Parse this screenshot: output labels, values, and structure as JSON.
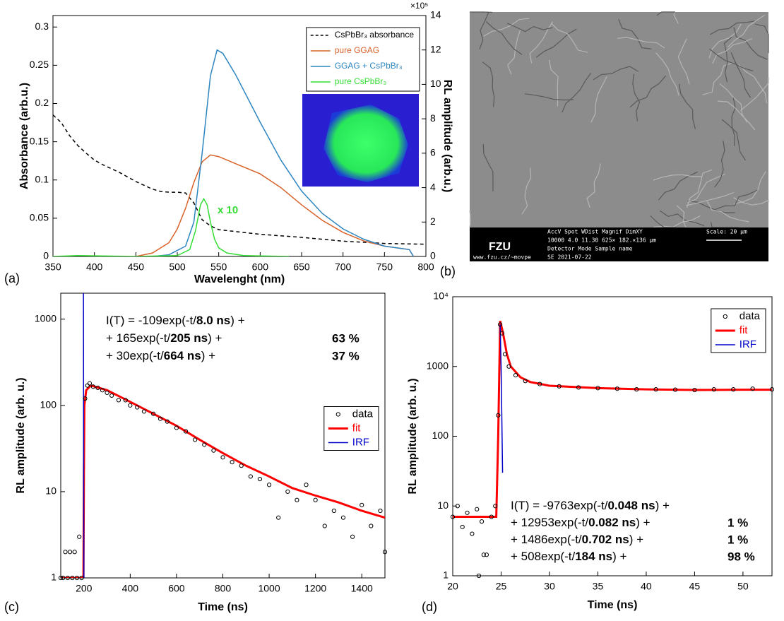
{
  "chart_data": [
    {
      "type": "line",
      "panel_label": "(a)",
      "xlabel": "Wavelenght (nm)",
      "ylabel": "Absorbance (arb.u.)",
      "y2label": "RL amplitude (arb.u.)",
      "y2_multiplier": "×10⁵",
      "annotation": "x 10",
      "xlim": [
        350,
        800
      ],
      "ylim": [
        0,
        0.315
      ],
      "y2lim": [
        0,
        14
      ],
      "xticks": [
        350,
        400,
        450,
        500,
        550,
        600,
        650,
        700,
        750,
        800
      ],
      "yticks": [
        0,
        0.05,
        0.1,
        0.15,
        0.2,
        0.25,
        0.3
      ],
      "y2ticks": [
        0,
        2,
        4,
        6,
        8,
        10,
        12,
        14
      ],
      "legend": "upper right",
      "series": [
        {
          "name": "CsPbBr₃ absorbance",
          "color": "#000000",
          "dash": true,
          "x": [
            350,
            360,
            370,
            380,
            390,
            400,
            410,
            420,
            430,
            440,
            450,
            460,
            470,
            480,
            490,
            500,
            510,
            520,
            530,
            540,
            550,
            575,
            600,
            650,
            700,
            750,
            800
          ],
          "values": [
            0.185,
            0.175,
            0.158,
            0.145,
            0.135,
            0.126,
            0.12,
            0.115,
            0.11,
            0.104,
            0.098,
            0.093,
            0.088,
            0.085,
            0.084,
            0.084,
            0.083,
            0.07,
            0.048,
            0.04,
            0.035,
            0.032,
            0.029,
            0.025,
            0.02,
            0.017,
            0.016
          ]
        },
        {
          "name": "pure GGAG",
          "color": "#d9622b",
          "axis": "y2",
          "x": [
            450,
            470,
            490,
            500,
            510,
            520,
            530,
            540,
            550,
            560,
            575,
            600,
            625,
            650,
            675,
            700,
            725,
            750,
            780,
            785
          ],
          "values": [
            0,
            0.2,
            0.8,
            1.6,
            2.8,
            4.3,
            5.5,
            5.9,
            5.8,
            5.6,
            5.3,
            4.8,
            4.0,
            3.0,
            2.1,
            1.4,
            0.9,
            0.6,
            0.4,
            0
          ]
        },
        {
          "name": "GGAG + CsPbBr₃",
          "color": "#2e86c1",
          "axis": "y2",
          "x": [
            470,
            490,
            510,
            520,
            530,
            540,
            548,
            555,
            570,
            600,
            625,
            650,
            675,
            700,
            725,
            750,
            780,
            785
          ],
          "values": [
            0,
            0.1,
            0.6,
            2.0,
            6.0,
            10.5,
            12.0,
            11.8,
            10.6,
            7.8,
            5.6,
            3.8,
            2.5,
            1.6,
            1.0,
            0.6,
            0.4,
            0
          ]
        },
        {
          "name": "pure CsPbBr₃",
          "color": "#33dd33",
          "axis": "y2",
          "x": [
            350,
            380,
            450,
            500,
            515,
            522,
            528,
            532,
            536,
            540,
            545,
            550,
            560,
            580,
            635
          ],
          "values": [
            0,
            0.05,
            0,
            0.05,
            0.4,
            1.5,
            3.0,
            3.35,
            3.0,
            2.0,
            1.0,
            0.5,
            0.2,
            0.05,
            0
          ]
        }
      ]
    },
    {
      "type": "scatter",
      "panel_label": "(c)",
      "xlabel": "Time (ns)",
      "ylabel": "RL amplitude (arb. u.)",
      "xlim": [
        100,
        1500
      ],
      "ylim": [
        1,
        2000
      ],
      "yscale": "log",
      "xticks": [
        200,
        400,
        600,
        800,
        1000,
        1200,
        1400
      ],
      "yticks": [
        1,
        10,
        100,
        1000
      ],
      "legend": "center right",
      "equation": [
        {
          "parts": [
            "I(T) = -109exp(-t/",
            "8.0 ns",
            ") +"
          ]
        },
        {
          "parts": [
            "+ 165exp(-t/",
            "205 ns",
            ") +"
          ],
          "percent": "63 %"
        },
        {
          "parts": [
            "+ 30exp(-t/",
            "664 ns",
            ") +"
          ],
          "percent": "37 %"
        }
      ],
      "series": [
        {
          "name": "data",
          "color": "#000000",
          "mode": "markers",
          "x": [
            100,
            110,
            120,
            130,
            140,
            150,
            160,
            170,
            180,
            190,
            205,
            215,
            225,
            240,
            260,
            280,
            300,
            320,
            350,
            380,
            400,
            430,
            460,
            500,
            530,
            560,
            600,
            640,
            680,
            720,
            760,
            800,
            840,
            880,
            920,
            960,
            1000,
            1040,
            1080,
            1120,
            1160,
            1200,
            1240,
            1280,
            1320,
            1360,
            1400,
            1440,
            1480,
            1500
          ],
          "values": [
            1,
            1,
            2,
            1,
            2,
            1,
            2,
            1,
            3,
            1,
            120,
            170,
            180,
            165,
            160,
            150,
            140,
            130,
            115,
            115,
            100,
            95,
            85,
            80,
            70,
            65,
            55,
            50,
            40,
            35,
            30,
            25,
            22,
            20,
            15,
            14,
            12,
            5,
            10,
            8,
            12,
            8,
            4,
            6,
            5,
            3,
            7,
            4,
            6,
            2
          ]
        },
        {
          "name": "fit",
          "color": "#ff0000",
          "width": 3,
          "x": [
            100,
            198,
            200,
            202,
            210,
            230,
            300,
            400,
            500,
            600,
            700,
            800,
            900,
            1000,
            1100,
            1200,
            1300,
            1400,
            1500
          ],
          "values": [
            1,
            1,
            15,
            100,
            150,
            170,
            150,
            110,
            80,
            58,
            40,
            28,
            20,
            15,
            11,
            9,
            7.5,
            6,
            5
          ]
        },
        {
          "name": "IRF",
          "color": "#0000c8",
          "x": [
            198,
            198.5,
            199,
            200
          ],
          "values": [
            2000,
            150,
            10,
            1
          ]
        }
      ]
    },
    {
      "type": "scatter",
      "panel_label": "(d)",
      "xlabel": "Time (ns)",
      "ylabel": "RL amplitude (arb. u.)",
      "xlim": [
        20,
        53
      ],
      "ylim": [
        1,
        10000
      ],
      "yscale": "log",
      "xticks": [
        20,
        25,
        30,
        35,
        40,
        45,
        50
      ],
      "yticks": [
        1,
        10,
        100,
        1000,
        {
          "value": 10000,
          "label": "10⁴"
        }
      ],
      "legend": "upper right",
      "equation": [
        {
          "parts": [
            "I(T) = -9763exp(-t/",
            "0.048 ns",
            ") +"
          ]
        },
        {
          "parts": [
            "+ 12953exp(-t/",
            "0.082 ns",
            ") +"
          ],
          "percent": "1 %"
        },
        {
          "parts": [
            "+ 1486exp(-t/",
            "0.702 ns",
            ") +"
          ],
          "percent": "1 %"
        },
        {
          "parts": [
            "+ 508exp(-t/",
            "184 ns",
            ") +"
          ],
          "percent": "98 %"
        }
      ],
      "series": [
        {
          "name": "data",
          "color": "#000000",
          "mode": "markers",
          "x": [
            20,
            20.5,
            21,
            21.5,
            22,
            22.5,
            22.7,
            23,
            23.2,
            23.5,
            24,
            24.4,
            24.7,
            24.9,
            25.1,
            25.4,
            25.8,
            26.5,
            27.5,
            29,
            31,
            33,
            35,
            37,
            39,
            41,
            43,
            45,
            47,
            49,
            51,
            53
          ],
          "values": [
            7,
            10,
            5,
            8,
            4,
            9,
            1,
            6,
            2,
            2,
            7,
            10,
            200,
            4000,
            3000,
            1500,
            1000,
            750,
            620,
            560,
            520,
            500,
            490,
            480,
            470,
            470,
            465,
            460,
            470,
            470,
            480,
            470
          ]
        },
        {
          "name": "fit",
          "color": "#ff0000",
          "width": 3,
          "x": [
            20,
            24.5,
            24.7,
            24.9,
            25.2,
            25.6,
            26,
            27,
            28,
            30,
            35,
            40,
            45,
            50,
            53
          ],
          "values": [
            7,
            7,
            100,
            4500,
            3000,
            1500,
            1000,
            700,
            600,
            530,
            490,
            470,
            460,
            465,
            465
          ]
        },
        {
          "name": "IRF",
          "color": "#0000c8",
          "x": [
            24.9,
            25,
            25.1,
            25.15
          ],
          "values": [
            4000,
            1000,
            100,
            30
          ]
        }
      ]
    }
  ],
  "sem_image": {
    "panel_label": "(b)",
    "logo": "FZU",
    "info_lines": [
      "AccV  Spot  WDist  Magnif  DimXY",
      "10000  4.0  11.30  625×  182.×136 µm",
      "Detector      Mode      Sample name",
      "SE            2021-07-22"
    ],
    "scale": "Scale: 20 µm",
    "url": "www.fzu.cz/~movpe"
  }
}
